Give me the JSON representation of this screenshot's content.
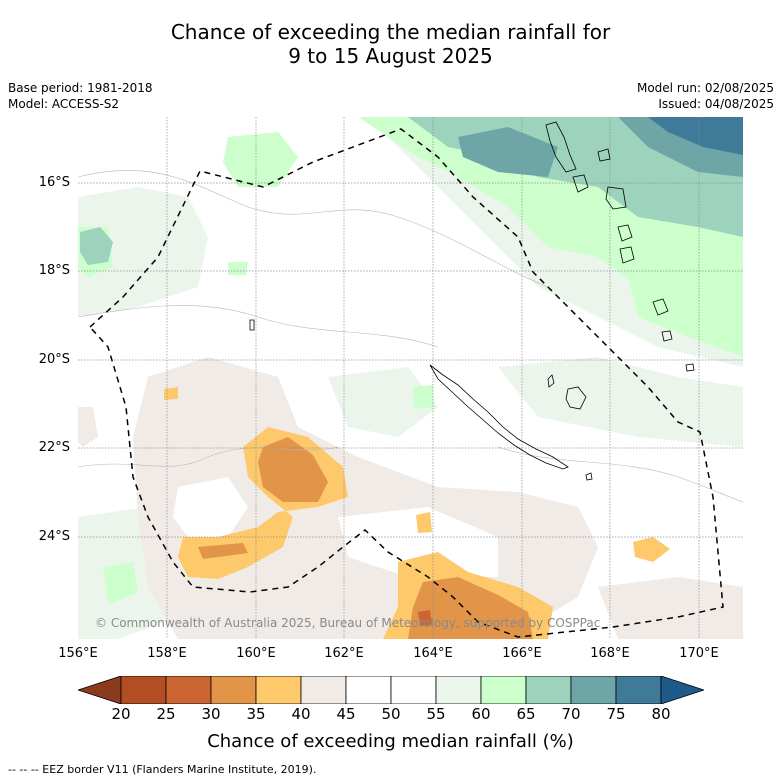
{
  "title": {
    "line1": "Chance of exceeding the median rainfall for",
    "line2": "9 to 15 August 2025"
  },
  "meta_left": {
    "base_period": "Base period: 1981-2018",
    "model": "Model: ACCESS-S2"
  },
  "meta_right": {
    "model_run": "Model run: 02/08/2025",
    "issued": "Issued: 04/08/2025"
  },
  "map": {
    "lon_range": [
      156,
      171
    ],
    "lat_range": [
      -26.3,
      -14.5
    ],
    "lat_ticks": [
      "16°S",
      "18°S",
      "20°S",
      "22°S",
      "24°S"
    ],
    "lon_ticks": [
      "156°E",
      "158°E",
      "160°E",
      "162°E",
      "164°E",
      "166°E",
      "168°E",
      "170°E"
    ],
    "copyright": "© Commonwealth of Australia 2025, Bureau of Meteorology, supported by COSPPac"
  },
  "colorbar": {
    "labels": [
      "20",
      "25",
      "30",
      "35",
      "40",
      "45",
      "50",
      "55",
      "60",
      "65",
      "70",
      "75",
      "80"
    ],
    "colors": [
      "#b24e24",
      "#cb6633",
      "#e29448",
      "#fdc96b",
      "#f1ebe7",
      "#ffffff",
      "#ffffff",
      "#ebf5ec",
      "#ccffcc",
      "#9dd2bd",
      "#6ea6a8",
      "#3f7a98"
    ],
    "low_color": "#8b3a1e",
    "high_color": "#1f5b8a",
    "title": "Chance of exceeding median rainfall (%)"
  },
  "legend_note": "--  --  -- EEZ border V11 (Flanders Marine Institute, 2019)."
}
